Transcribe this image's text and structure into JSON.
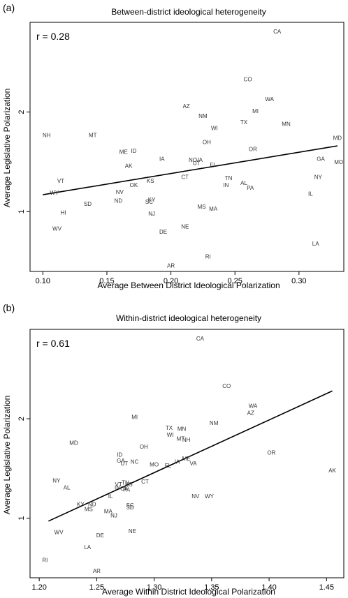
{
  "chart_data": [
    {
      "type": "scatter",
      "panel_label": "(a)",
      "title": "Between-district ideological heterogeneity",
      "annotation": "r = 0.28",
      "xlabel": "Average Between District Ideological Polarization",
      "ylabel": "Average Legislative Polarization",
      "xlim": [
        0.09,
        0.335
      ],
      "ylim": [
        0.4,
        2.9
      ],
      "xticks": [
        0.1,
        0.15,
        0.2,
        0.25,
        0.3
      ],
      "xtick_labels": [
        "0.10",
        "0.15",
        "0.20",
        "0.25",
        "0.30"
      ],
      "yticks": [
        1,
        2
      ],
      "ytick_labels": [
        "1",
        "2"
      ],
      "fit_line": [
        [
          0.1,
          1.17
        ],
        [
          0.33,
          1.66
        ]
      ],
      "points": [
        {
          "label": "CA",
          "x": 0.283,
          "y": 2.81
        },
        {
          "label": "CO",
          "x": 0.26,
          "y": 2.33
        },
        {
          "label": "WA",
          "x": 0.277,
          "y": 2.13
        },
        {
          "label": "AZ",
          "x": 0.212,
          "y": 2.06
        },
        {
          "label": "MI",
          "x": 0.266,
          "y": 2.01
        },
        {
          "label": "NM",
          "x": 0.225,
          "y": 1.96
        },
        {
          "label": "TX",
          "x": 0.257,
          "y": 1.9
        },
        {
          "label": "MN",
          "x": 0.29,
          "y": 1.88
        },
        {
          "label": "WI",
          "x": 0.234,
          "y": 1.84
        },
        {
          "label": "NH",
          "x": 0.103,
          "y": 1.77
        },
        {
          "label": "MT",
          "x": 0.139,
          "y": 1.77
        },
        {
          "label": "MD",
          "x": 0.33,
          "y": 1.74
        },
        {
          "label": "OH",
          "x": 0.228,
          "y": 1.7
        },
        {
          "label": "OR",
          "x": 0.264,
          "y": 1.63
        },
        {
          "label": "ME",
          "x": 0.163,
          "y": 1.6
        },
        {
          "label": "ID",
          "x": 0.171,
          "y": 1.61
        },
        {
          "label": "GA",
          "x": 0.317,
          "y": 1.53
        },
        {
          "label": "MO",
          "x": 0.331,
          "y": 1.5
        },
        {
          "label": "IA",
          "x": 0.193,
          "y": 1.53
        },
        {
          "label": "NC",
          "x": 0.217,
          "y": 1.52
        },
        {
          "label": "VA",
          "x": 0.222,
          "y": 1.52
        },
        {
          "label": "UT",
          "x": 0.22,
          "y": 1.49
        },
        {
          "label": "FL",
          "x": 0.233,
          "y": 1.47
        },
        {
          "label": "AK",
          "x": 0.167,
          "y": 1.46
        },
        {
          "label": "CT",
          "x": 0.211,
          "y": 1.35
        },
        {
          "label": "NY",
          "x": 0.315,
          "y": 1.35
        },
        {
          "label": "TN",
          "x": 0.245,
          "y": 1.34
        },
        {
          "label": "KS",
          "x": 0.184,
          "y": 1.31
        },
        {
          "label": "AL",
          "x": 0.257,
          "y": 1.29
        },
        {
          "label": "VT",
          "x": 0.114,
          "y": 1.31
        },
        {
          "label": "IN",
          "x": 0.243,
          "y": 1.27
        },
        {
          "label": "PA",
          "x": 0.262,
          "y": 1.24
        },
        {
          "label": "OK",
          "x": 0.171,
          "y": 1.27
        },
        {
          "label": "WY",
          "x": 0.109,
          "y": 1.19
        },
        {
          "label": "NV",
          "x": 0.16,
          "y": 1.2
        },
        {
          "label": "IL",
          "x": 0.309,
          "y": 1.18
        },
        {
          "label": "ND",
          "x": 0.159,
          "y": 1.11
        },
        {
          "label": "KY",
          "x": 0.185,
          "y": 1.12
        },
        {
          "label": "SC",
          "x": 0.183,
          "y": 1.1
        },
        {
          "label": "SD",
          "x": 0.135,
          "y": 1.08
        },
        {
          "label": "MS",
          "x": 0.224,
          "y": 1.05
        },
        {
          "label": "MA",
          "x": 0.233,
          "y": 1.03
        },
        {
          "label": "HI",
          "x": 0.116,
          "y": 0.99
        },
        {
          "label": "NJ",
          "x": 0.185,
          "y": 0.98
        },
        {
          "label": "NE",
          "x": 0.211,
          "y": 0.85
        },
        {
          "label": "WV",
          "x": 0.111,
          "y": 0.83
        },
        {
          "label": "DE",
          "x": 0.194,
          "y": 0.8
        },
        {
          "label": "LA",
          "x": 0.313,
          "y": 0.68
        },
        {
          "label": "RI",
          "x": 0.229,
          "y": 0.55
        },
        {
          "label": "AR",
          "x": 0.2,
          "y": 0.46
        }
      ]
    },
    {
      "type": "scatter",
      "panel_label": "(b)",
      "title": "Within-district ideological heterogeneity",
      "annotation": "r = 0.61",
      "xlabel": "Average Within District Ideological Polarization",
      "ylabel": "Average Legislative Polarization",
      "xlim": [
        1.192,
        1.465
      ],
      "ylim": [
        0.4,
        2.9
      ],
      "xticks": [
        1.2,
        1.25,
        1.3,
        1.35,
        1.4,
        1.45
      ],
      "xtick_labels": [
        "1.20",
        "1.25",
        "1.30",
        "1.35",
        "1.40",
        "1.45"
      ],
      "yticks": [
        1,
        2
      ],
      "ytick_labels": [
        "1",
        "2"
      ],
      "fit_line": [
        [
          1.208,
          0.97
        ],
        [
          1.455,
          2.28
        ]
      ],
      "points": [
        {
          "label": "CA",
          "x": 1.34,
          "y": 2.81
        },
        {
          "label": "CO",
          "x": 1.363,
          "y": 2.33
        },
        {
          "label": "WA",
          "x": 1.386,
          "y": 2.13
        },
        {
          "label": "AZ",
          "x": 1.384,
          "y": 2.06
        },
        {
          "label": "MI",
          "x": 1.283,
          "y": 2.02
        },
        {
          "label": "NM",
          "x": 1.352,
          "y": 1.96
        },
        {
          "label": "TX",
          "x": 1.313,
          "y": 1.91
        },
        {
          "label": "MN",
          "x": 1.324,
          "y": 1.9
        },
        {
          "label": "WI",
          "x": 1.314,
          "y": 1.84
        },
        {
          "label": "MT",
          "x": 1.323,
          "y": 1.8
        },
        {
          "label": "NH",
          "x": 1.328,
          "y": 1.79
        },
        {
          "label": "MD",
          "x": 1.23,
          "y": 1.76
        },
        {
          "label": "OH",
          "x": 1.291,
          "y": 1.72
        },
        {
          "label": "OR",
          "x": 1.402,
          "y": 1.66
        },
        {
          "label": "ID",
          "x": 1.27,
          "y": 1.64
        },
        {
          "label": "ME",
          "x": 1.328,
          "y": 1.6
        },
        {
          "label": "GA",
          "x": 1.271,
          "y": 1.58
        },
        {
          "label": "NC",
          "x": 1.283,
          "y": 1.57
        },
        {
          "label": "IA",
          "x": 1.32,
          "y": 1.57
        },
        {
          "label": "UT",
          "x": 1.274,
          "y": 1.55
        },
        {
          "label": "VA",
          "x": 1.334,
          "y": 1.55
        },
        {
          "label": "MO",
          "x": 1.3,
          "y": 1.54
        },
        {
          "label": "FL",
          "x": 1.312,
          "y": 1.53
        },
        {
          "label": "AK",
          "x": 1.455,
          "y": 1.48
        },
        {
          "label": "NY",
          "x": 1.215,
          "y": 1.38
        },
        {
          "label": "CT",
          "x": 1.292,
          "y": 1.37
        },
        {
          "label": "TN",
          "x": 1.275,
          "y": 1.36
        },
        {
          "label": "VT",
          "x": 1.269,
          "y": 1.34
        },
        {
          "label": "KS",
          "x": 1.278,
          "y": 1.34
        },
        {
          "label": "AL",
          "x": 1.224,
          "y": 1.31
        },
        {
          "label": "IN",
          "x": 1.268,
          "y": 1.31
        },
        {
          "label": "OK",
          "x": 1.274,
          "y": 1.3
        },
        {
          "label": "PA",
          "x": 1.276,
          "y": 1.29
        },
        {
          "label": "IL",
          "x": 1.262,
          "y": 1.22
        },
        {
          "label": "NV",
          "x": 1.336,
          "y": 1.22
        },
        {
          "label": "WY",
          "x": 1.348,
          "y": 1.22
        },
        {
          "label": "KY",
          "x": 1.236,
          "y": 1.14
        },
        {
          "label": "ND",
          "x": 1.246,
          "y": 1.14
        },
        {
          "label": "SC",
          "x": 1.279,
          "y": 1.13
        },
        {
          "label": "SD",
          "x": 1.279,
          "y": 1.11
        },
        {
          "label": "MS",
          "x": 1.243,
          "y": 1.09
        },
        {
          "label": "MA",
          "x": 1.26,
          "y": 1.07
        },
        {
          "label": "NJ",
          "x": 1.265,
          "y": 1.03
        },
        {
          "label": "NE",
          "x": 1.281,
          "y": 0.87
        },
        {
          "label": "WV",
          "x": 1.217,
          "y": 0.86
        },
        {
          "label": "DE",
          "x": 1.253,
          "y": 0.83
        },
        {
          "label": "LA",
          "x": 1.242,
          "y": 0.71
        },
        {
          "label": "RI",
          "x": 1.205,
          "y": 0.58
        },
        {
          "label": "AR",
          "x": 1.25,
          "y": 0.47
        }
      ]
    }
  ]
}
